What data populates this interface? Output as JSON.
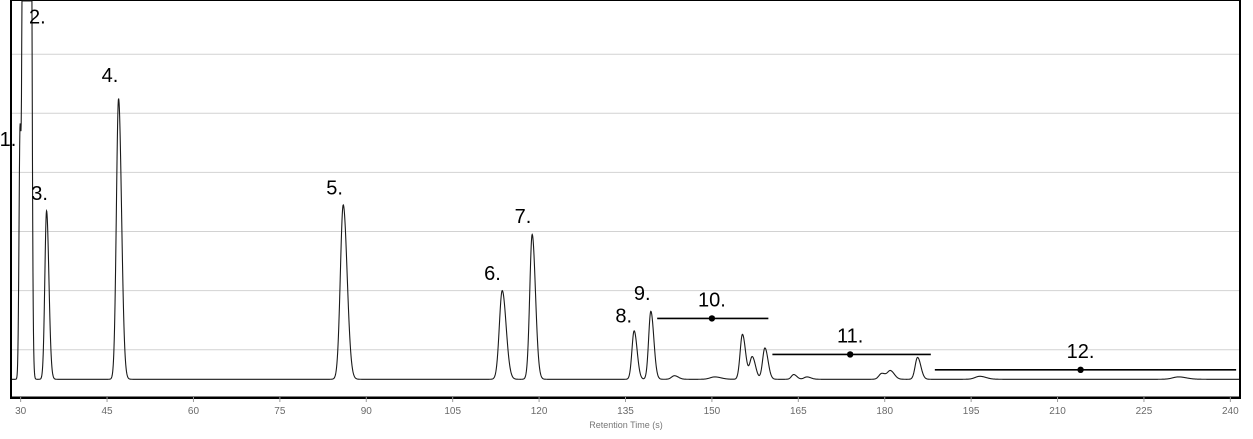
{
  "chart_data": {
    "type": "line",
    "title": "",
    "xlabel": "Retention Time (s)",
    "ylabel": "",
    "xlim": [
      28.5,
      241.5
    ],
    "ylim": [
      -3,
      64
    ],
    "grid": {
      "x": false,
      "y": true
    },
    "y_gridlines": [
      5,
      15,
      25,
      35,
      45,
      55
    ],
    "x_ticks": [
      30,
      45,
      60,
      75,
      90,
      105,
      120,
      135,
      150,
      165,
      180,
      195,
      210,
      225,
      240
    ],
    "x_tick_labels": [
      "30",
      "45",
      "60",
      "75",
      "90",
      "105",
      "120",
      "135",
      "150",
      "165",
      "180",
      "195",
      "210",
      "225",
      "240"
    ],
    "series": [
      {
        "baseline": 0,
        "line_color": "#1a1a1a",
        "peaks": [
          {
            "x": 29.9,
            "height": 42.5,
            "width": 0.18
          },
          {
            "x": 30.6,
            "height": 300,
            "width": 0.2
          },
          {
            "x": 31.5,
            "height": 300,
            "width": 0.2
          },
          {
            "x": 34.5,
            "height": 28.5,
            "width": 0.3
          },
          {
            "x": 47.0,
            "height": 47.5,
            "width": 0.38
          },
          {
            "x": 86.0,
            "height": 29.5,
            "width": 0.5
          },
          {
            "x": 113.6,
            "height": 15.0,
            "width": 0.5
          },
          {
            "x": 118.8,
            "height": 24.5,
            "width": 0.42
          },
          {
            "x": 136.5,
            "height": 8.2,
            "width": 0.38
          },
          {
            "x": 139.4,
            "height": 11.5,
            "width": 0.38
          },
          {
            "x": 143.5,
            "height": 0.6,
            "width": 0.5
          },
          {
            "x": 150.5,
            "height": 0.4,
            "width": 0.8
          },
          {
            "x": 155.3,
            "height": 7.6,
            "width": 0.4
          },
          {
            "x": 157.0,
            "height": 3.8,
            "width": 0.42
          },
          {
            "x": 159.2,
            "height": 5.3,
            "width": 0.4
          },
          {
            "x": 164.2,
            "height": 0.8,
            "width": 0.4
          },
          {
            "x": 166.5,
            "height": 0.4,
            "width": 0.5
          },
          {
            "x": 179.5,
            "height": 1.0,
            "width": 0.5
          },
          {
            "x": 181.0,
            "height": 1.4,
            "width": 0.5
          },
          {
            "x": 185.7,
            "height": 3.7,
            "width": 0.42
          },
          {
            "x": 196.5,
            "height": 0.5,
            "width": 0.8
          },
          {
            "x": 231.0,
            "height": 0.4,
            "width": 1.0
          }
        ]
      }
    ],
    "annotations": [
      {
        "label": "1.",
        "x": 27.8,
        "y": 39.5
      },
      {
        "label": "2.",
        "x": 32.9,
        "y": 60.2
      },
      {
        "label": "3.",
        "x": 33.3,
        "y": 30.3
      },
      {
        "label": "4.",
        "x": 45.5,
        "y": 50.3
      },
      {
        "label": "5.",
        "x": 84.5,
        "y": 31.3
      },
      {
        "label": "6.",
        "x": 111.9,
        "y": 16.8
      },
      {
        "label": "7.",
        "x": 117.2,
        "y": 26.4
      },
      {
        "label": "8.",
        "x": 134.7,
        "y": 9.6
      },
      {
        "label": "9.",
        "x": 137.9,
        "y": 13.4
      },
      {
        "label": "10.",
        "x": 150.0,
        "y": 12.3
      },
      {
        "label": "11.",
        "x": 174.0,
        "y": 6.2
      },
      {
        "label": "12.",
        "x": 214.0,
        "y": 3.6
      }
    ],
    "ranges": [
      {
        "label": "10.",
        "x_start": 140.5,
        "x_end": 159.8,
        "y": 10.3,
        "marker_x": 150.0
      },
      {
        "label": "11.",
        "x_start": 160.5,
        "x_end": 188.0,
        "y": 4.2,
        "marker_x": 174.0
      },
      {
        "label": "12.",
        "x_start": 188.7,
        "x_end": 241.0,
        "y": 1.6,
        "marker_x": 214.0
      }
    ]
  }
}
